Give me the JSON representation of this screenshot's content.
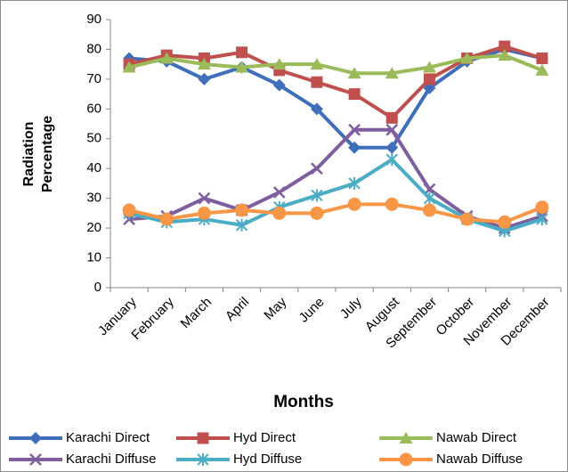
{
  "chart_data": {
    "type": "line",
    "categories": [
      "January",
      "February",
      "March",
      "April",
      "May",
      "June",
      "July",
      "August",
      "September",
      "October",
      "November",
      "December"
    ],
    "xlabel": "Months",
    "ylabel": [
      "Radiation",
      "Percentage"
    ],
    "ylim": [
      0,
      90
    ],
    "yticks": [
      0,
      10,
      20,
      30,
      40,
      50,
      60,
      70,
      80,
      90
    ],
    "grid": false,
    "legend": "bottom",
    "series": [
      {
        "name": "Karachi Direct",
        "color": "#3f6fba",
        "marker": "diamond",
        "values": [
          77,
          76,
          70,
          74,
          68,
          60,
          47,
          47,
          67,
          76,
          80,
          77
        ]
      },
      {
        "name": "Hyd Direct",
        "color": "#c0504d",
        "marker": "square",
        "values": [
          75,
          78,
          77,
          79,
          73,
          69,
          65,
          57,
          70,
          77,
          81,
          77
        ]
      },
      {
        "name": "Nawab Direct",
        "color": "#9bbb59",
        "marker": "triangle",
        "values": [
          74,
          77,
          75,
          74,
          75,
          75,
          72,
          72,
          74,
          77,
          78,
          73
        ]
      },
      {
        "name": "Karachi Diffuse",
        "color": "#7f5ea0",
        "marker": "x",
        "values": [
          23,
          24,
          30,
          26,
          32,
          40,
          53,
          53,
          33,
          24,
          20,
          24
        ]
      },
      {
        "name": "Hyd Diffuse",
        "color": "#4bacc6",
        "marker": "star",
        "values": [
          25,
          22,
          23,
          21,
          27,
          31,
          35,
          43,
          30,
          23,
          19,
          23
        ]
      },
      {
        "name": "Nawab Diffuse",
        "color": "#f79646",
        "marker": "circle",
        "values": [
          26,
          23,
          25,
          26,
          25,
          25,
          28,
          28,
          26,
          23,
          22,
          27
        ]
      }
    ]
  }
}
